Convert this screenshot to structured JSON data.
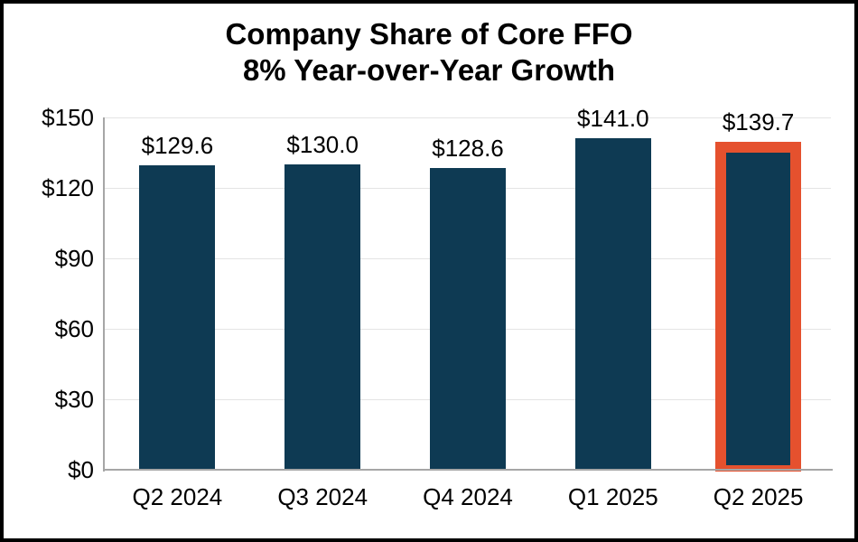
{
  "title": {
    "line1": "Company Share of Core FFO",
    "line2": "8% Year-over-Year Growth"
  },
  "chart_data": {
    "type": "bar",
    "categories": [
      "Q2 2024",
      "Q3 2024",
      "Q4 2024",
      "Q1 2025",
      "Q2 2025"
    ],
    "values": [
      129.6,
      130.0,
      128.6,
      141.0,
      139.7
    ],
    "data_labels": [
      "$129.6",
      "$130.0",
      "$128.6",
      "$141.0",
      "$139.7"
    ],
    "title": "Company Share of Core FFO",
    "subtitle": "8% Year-over-Year Growth",
    "xlabel": "",
    "ylabel": "",
    "ylim": [
      0,
      150
    ],
    "y_tick_values": [
      150,
      120,
      90,
      60,
      30,
      0
    ],
    "y_tick_labels": [
      "$150",
      "$120",
      "$90",
      "$60",
      "$30",
      "$0"
    ],
    "grid": "horizontal",
    "legend": "none",
    "highlight_index": 4,
    "colors": {
      "bar": "#0E3A53",
      "highlight_border": "#E5512E",
      "gridline": "#E4E4E4",
      "axis_line": "#A6A6A6",
      "text": "#000000",
      "background": "#FFFFFF",
      "frame_border": "#000000"
    }
  }
}
